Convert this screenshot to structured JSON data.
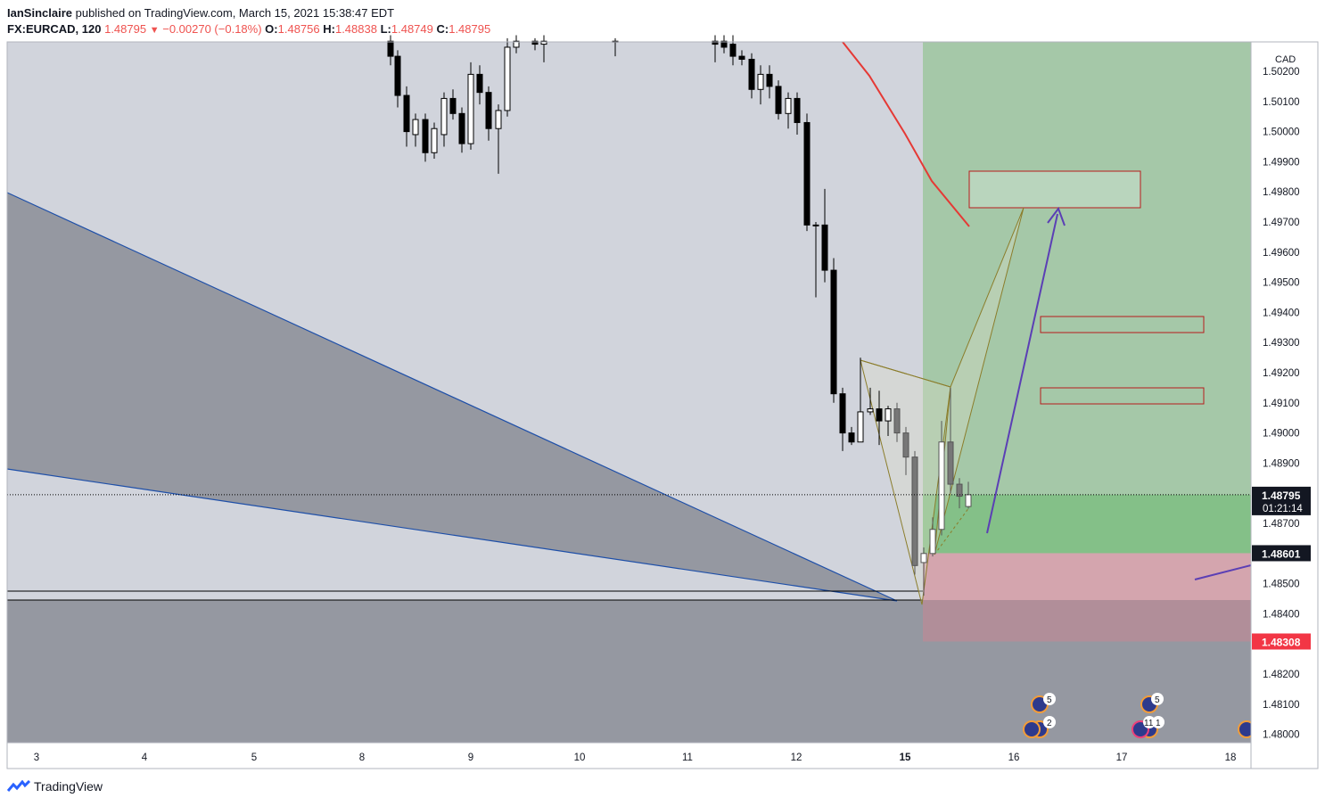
{
  "header": {
    "author": "IanSinclaire",
    "published_text": "published on TradingView.com, March 15, 2021 15:38:47 EDT",
    "symbol": "FX:EURCAD, 120",
    "last": "1.48795",
    "change": "−0.00270 (−0.18%)",
    "o_label": "O:",
    "o": "1.48756",
    "h_label": "H:",
    "h": "1.48838",
    "l_label": "L:",
    "l": "1.48749",
    "c_label": "C:",
    "c": "1.48795"
  },
  "footer": {
    "brand": "TradingView"
  },
  "colors": {
    "plot_bg": "#d1d4dc",
    "dark_zone": "#9598a1",
    "target_zone": "#a5c8a8",
    "profit_zone": "#84c088",
    "stop_zone": "#d4a5ae",
    "stop_zone_below": "#b18e99",
    "harmonic": "#8b7d2b",
    "arrow": "#5b3fb5",
    "ma": "#e53935",
    "box": "#b71c1c",
    "up_candle": "#ffffff",
    "down_candle": "#000000"
  },
  "chart_data": {
    "type": "candlestick",
    "currency": "CAD",
    "ylim": [
      1.4798,
      1.5033
    ],
    "x_tick_labels": [
      "3",
      "4",
      "5",
      "8",
      "9",
      "10",
      "11",
      "12",
      "15",
      "16",
      "17",
      "18"
    ],
    "y_tick_labels": [
      "1.50200",
      "1.50100",
      "1.50000",
      "1.49900",
      "1.49800",
      "1.49700",
      "1.49600",
      "1.49500",
      "1.49400",
      "1.49300",
      "1.49200",
      "1.49100",
      "1.49000",
      "1.48900",
      "1.48700",
      "1.48500",
      "1.48400",
      "1.48200",
      "1.48100",
      "1.48000"
    ],
    "last_price": {
      "label": "1.48795",
      "countdown": "01:21:14",
      "value": 1.48795
    },
    "entry_price": {
      "label": "1.48601",
      "value": 1.48601
    },
    "stop_price": {
      "label": "1.48308",
      "value": 1.48308
    },
    "event_badges": [
      {
        "label": "5",
        "day": "16"
      },
      {
        "label": "2",
        "day": "16"
      },
      {
        "label": "5",
        "day": "17"
      },
      {
        "label": "11",
        "day": "17"
      },
      {
        "label": "1",
        "day": "17"
      }
    ],
    "candles": [
      {
        "x": 438,
        "o": 1.503,
        "c": 1.5025,
        "h": 1.5032,
        "l": 1.5022
      },
      {
        "x": 446,
        "o": 1.5025,
        "c": 1.5012,
        "h": 1.5027,
        "l": 1.5008
      },
      {
        "x": 456,
        "o": 1.5012,
        "c": 1.5,
        "h": 1.5015,
        "l": 1.4995
      },
      {
        "x": 466,
        "o": 1.4999,
        "c": 1.5004,
        "h": 1.5006,
        "l": 1.4995
      },
      {
        "x": 477,
        "o": 1.5004,
        "c": 1.4993,
        "h": 1.5006,
        "l": 1.499
      },
      {
        "x": 487,
        "o": 1.4993,
        "c": 1.5001,
        "h": 1.5003,
        "l": 1.4991
      },
      {
        "x": 498,
        "o": 1.4999,
        "c": 1.5011,
        "h": 1.5013,
        "l": 1.4995
      },
      {
        "x": 508,
        "o": 1.5011,
        "c": 1.5006,
        "h": 1.5014,
        "l": 1.5004
      },
      {
        "x": 518,
        "o": 1.5006,
        "c": 1.4996,
        "h": 1.5008,
        "l": 1.4993
      },
      {
        "x": 528,
        "o": 1.4996,
        "c": 1.5019,
        "h": 1.5023,
        "l": 1.4994
      },
      {
        "x": 538,
        "o": 1.5019,
        "c": 1.5013,
        "h": 1.5022,
        "l": 1.5009
      },
      {
        "x": 548,
        "o": 1.5013,
        "c": 1.5001,
        "h": 1.5015,
        "l": 1.4997
      },
      {
        "x": 559,
        "o": 1.5001,
        "c": 1.5007,
        "h": 1.5009,
        "l": 1.4986
      },
      {
        "x": 569,
        "o": 1.5007,
        "c": 1.5028,
        "h": 1.5031,
        "l": 1.5005
      },
      {
        "x": 579,
        "o": 1.5028,
        "c": 1.503,
        "h": 1.5032,
        "l": 1.5026
      },
      {
        "x": 600,
        "o": 1.503,
        "c": 1.5029,
        "h": 1.5031,
        "l": 1.5027
      },
      {
        "x": 610,
        "o": 1.5029,
        "c": 1.503,
        "h": 1.5032,
        "l": 1.5023
      },
      {
        "x": 690,
        "o": 1.503,
        "c": 1.503,
        "h": 1.5031,
        "l": 1.5025
      },
      {
        "x": 802,
        "o": 1.503,
        "c": 1.5029,
        "h": 1.5032,
        "l": 1.5023
      },
      {
        "x": 812,
        "o": 1.503,
        "c": 1.5028,
        "h": 1.5032,
        "l": 1.5026
      },
      {
        "x": 822,
        "o": 1.5029,
        "c": 1.5025,
        "h": 1.5032,
        "l": 1.5022
      },
      {
        "x": 832,
        "o": 1.5025,
        "c": 1.5024,
        "h": 1.5027,
        "l": 1.5022
      },
      {
        "x": 843,
        "o": 1.5024,
        "c": 1.5014,
        "h": 1.5026,
        "l": 1.5011
      },
      {
        "x": 853,
        "o": 1.5014,
        "c": 1.5019,
        "h": 1.5022,
        "l": 1.5009
      },
      {
        "x": 863,
        "o": 1.5019,
        "c": 1.5015,
        "h": 1.5022,
        "l": 1.5011
      },
      {
        "x": 873,
        "o": 1.5015,
        "c": 1.5006,
        "h": 1.5017,
        "l": 1.5004
      },
      {
        "x": 884,
        "o": 1.5006,
        "c": 1.5011,
        "h": 1.5013,
        "l": 1.5001
      },
      {
        "x": 894,
        "o": 1.5011,
        "c": 1.5003,
        "h": 1.5013,
        "l": 1.4999
      },
      {
        "x": 905,
        "o": 1.5003,
        "c": 1.4969,
        "h": 1.5006,
        "l": 1.4967
      },
      {
        "x": 915,
        "o": 1.4969,
        "c": 1.4969,
        "h": 1.497,
        "l": 1.4945
      },
      {
        "x": 925,
        "o": 1.4969,
        "c": 1.4954,
        "h": 1.4981,
        "l": 1.495
      },
      {
        "x": 935,
        "o": 1.4954,
        "c": 1.4913,
        "h": 1.4958,
        "l": 1.491
      },
      {
        "x": 945,
        "o": 1.4913,
        "c": 1.49,
        "h": 1.4915,
        "l": 1.4894
      },
      {
        "x": 955,
        "o": 1.49,
        "c": 1.4897,
        "h": 1.4902,
        "l": 1.4896
      },
      {
        "x": 965,
        "o": 1.4897,
        "c": 1.4907,
        "h": 1.4925,
        "l": 1.4897
      },
      {
        "x": 976,
        "o": 1.4907,
        "c": 1.4908,
        "h": 1.4915,
        "l": 1.4906
      },
      {
        "x": 986,
        "o": 1.4908,
        "c": 1.4904,
        "h": 1.4914,
        "l": 1.4896
      },
      {
        "x": 996,
        "o": 1.4904,
        "c": 1.4908,
        "h": 1.4909,
        "l": 1.4899
      },
      {
        "x": 1006,
        "o": 1.4908,
        "c": 1.49,
        "h": 1.491,
        "l": 1.4897
      },
      {
        "x": 1016,
        "o": 1.49,
        "c": 1.4892,
        "h": 1.4902,
        "l": 1.4886
      },
      {
        "x": 1026,
        "o": 1.4892,
        "c": 1.4856,
        "h": 1.4894,
        "l": 1.4853
      },
      {
        "x": 1036,
        "o": 1.4857,
        "c": 1.486,
        "h": 1.4862,
        "l": 1.4846
      },
      {
        "x": 1046,
        "o": 1.486,
        "c": 1.4868,
        "h": 1.4872,
        "l": 1.4859
      },
      {
        "x": 1056,
        "o": 1.4868,
        "c": 1.4897,
        "h": 1.4904,
        "l": 1.4866
      },
      {
        "x": 1066,
        "o": 1.4897,
        "c": 1.4883,
        "h": 1.4915,
        "l": 1.488
      },
      {
        "x": 1076,
        "o": 1.4883,
        "c": 1.4879,
        "h": 1.4885,
        "l": 1.4875
      },
      {
        "x": 1086,
        "o": 1.48756,
        "c": 1.48795,
        "h": 1.48838,
        "l": 1.48749
      }
    ]
  }
}
